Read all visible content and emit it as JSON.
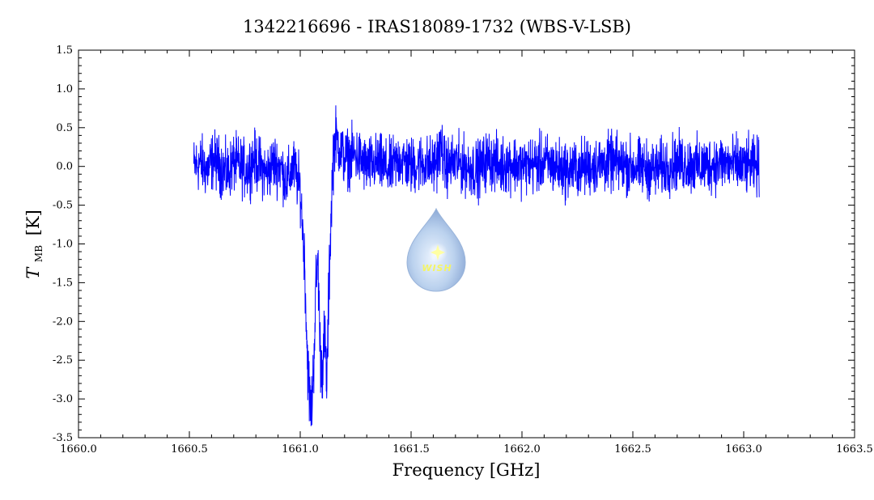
{
  "chart_data": {
    "type": "line",
    "title": "1342216696 - IRAS18089-1732 (WBS-V-LSB)",
    "xlabel": "Frequency [GHz]",
    "ylabel": {
      "symbol": "T",
      "subscript": "MB",
      "unit": "[K]"
    },
    "xlim": [
      1660.0,
      1663.5
    ],
    "ylim": [
      -3.5,
      1.5
    ],
    "x_ticks": [
      1660.0,
      1660.5,
      1661.0,
      1661.5,
      1662.0,
      1662.5,
      1663.0,
      1663.5
    ],
    "x_tick_labels": [
      "1660.0",
      "1660.5",
      "1661.0",
      "1661.5",
      "1662.0",
      "1662.5",
      "1663.0",
      "1663.5"
    ],
    "y_ticks": [
      1.5,
      1.0,
      0.5,
      0.0,
      -0.5,
      -1.0,
      -1.5,
      -2.0,
      -2.5,
      -3.0,
      -3.5
    ],
    "y_tick_labels": [
      "1.5",
      "1.0",
      "0.5",
      "0.0",
      "-0.5",
      "-1.0",
      "-1.5",
      "-2.0",
      "-2.5",
      "-3.0",
      "-3.5"
    ],
    "grid": false,
    "line_color": "#0000ff",
    "series": [
      {
        "x": [
          1660.52,
          1660.55,
          1660.58,
          1660.61,
          1660.64,
          1660.67,
          1660.7,
          1660.73,
          1660.76,
          1660.79,
          1660.82,
          1660.85,
          1660.88,
          1660.91,
          1660.94,
          1660.97,
          1661.0,
          1661.02,
          1661.03,
          1661.04,
          1661.05,
          1661.06,
          1661.07,
          1661.08,
          1661.09,
          1661.1,
          1661.11,
          1661.12,
          1661.13,
          1661.14,
          1661.15,
          1661.16,
          1661.17,
          1661.2,
          1661.25,
          1661.3,
          1661.35,
          1661.4,
          1661.45,
          1661.5,
          1661.55,
          1661.6,
          1661.63,
          1661.64,
          1661.65,
          1661.7,
          1661.75,
          1661.8,
          1661.85,
          1661.9,
          1661.95,
          1662.0,
          1662.1,
          1662.2,
          1662.3,
          1662.4,
          1662.5,
          1662.6,
          1662.7,
          1662.8,
          1662.9,
          1663.0,
          1663.07
        ],
        "y": [
          0.0,
          0.05,
          -0.05,
          0.1,
          0.0,
          -0.1,
          0.05,
          0.0,
          -0.05,
          0.1,
          0.0,
          -0.1,
          0.05,
          0.0,
          -0.2,
          0.0,
          -0.3,
          -1.2,
          -2.3,
          -2.9,
          -3.2,
          -2.6,
          -1.6,
          -1.2,
          -2.4,
          -2.6,
          -2.2,
          -2.8,
          -1.5,
          -0.5,
          0.2,
          0.4,
          0.3,
          0.1,
          0.15,
          0.0,
          0.05,
          -0.05,
          0.1,
          0.0,
          0.05,
          0.0,
          0.2,
          0.25,
          0.0,
          0.05,
          0.0,
          -0.05,
          0.1,
          0.0,
          0.05,
          0.0,
          0.05,
          -0.05,
          0.0,
          0.05,
          0.0,
          -0.05,
          0.05,
          0.0,
          0.05,
          0.0,
          0.0
        ]
      }
    ]
  },
  "watermark": {
    "text": "WISH"
  }
}
